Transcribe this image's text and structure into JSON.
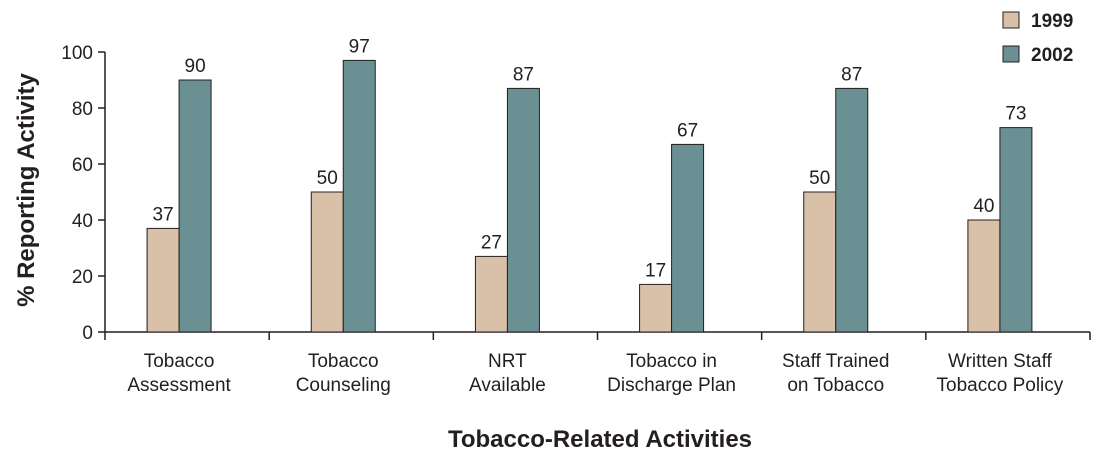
{
  "chart_data": {
    "type": "bar",
    "title": "",
    "xlabel": "Tobacco-Related Activities",
    "ylabel": "% Reporting Activity",
    "ylim": [
      0,
      100
    ],
    "yticks": [
      0,
      20,
      40,
      60,
      80,
      100
    ],
    "grid": false,
    "legend_position": "top-right",
    "categories": [
      [
        "Tobacco",
        "Assessment"
      ],
      [
        "Tobacco",
        "Counseling"
      ],
      [
        "NRT",
        "Available"
      ],
      [
        "Tobacco in",
        "Discharge Plan"
      ],
      [
        "Staff Trained",
        "on Tobacco"
      ],
      [
        "Written Staff",
        "Tobacco Policy"
      ]
    ],
    "series": [
      {
        "name": "1999",
        "color": "#d9c0a8",
        "values": [
          37,
          50,
          27,
          17,
          50,
          40
        ]
      },
      {
        "name": "2002",
        "color": "#6b9093",
        "values": [
          90,
          97,
          87,
          67,
          87,
          73
        ]
      }
    ]
  }
}
